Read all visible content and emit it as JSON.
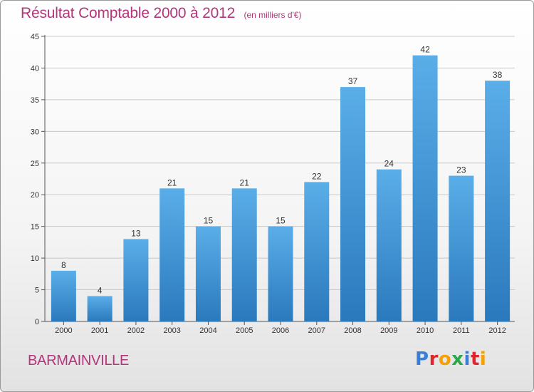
{
  "header": {
    "title": "Résultat Comptable 2000 à 2012",
    "subtitle": "(en milliers d'€)"
  },
  "footer": {
    "town": "BARMAINVILLE",
    "logo_letters": [
      "P",
      "r",
      "o",
      "x",
      "i",
      "t",
      "i"
    ],
    "logo_colors": [
      "#3a7fd5",
      "#e0252e",
      "#f5a000",
      "#2aa84a",
      "#3a7fd5",
      "#e0252e",
      "#f5a000"
    ]
  },
  "chart_data": {
    "type": "bar",
    "title": "Résultat Comptable 2000 à 2012",
    "subtitle": "(en milliers d'€)",
    "xlabel": "",
    "ylabel": "",
    "categories": [
      "2000",
      "2001",
      "2002",
      "2003",
      "2004",
      "2005",
      "2006",
      "2007",
      "2008",
      "2009",
      "2010",
      "2011",
      "2012"
    ],
    "values": [
      8,
      4,
      13,
      21,
      15,
      21,
      15,
      22,
      37,
      24,
      42,
      23,
      38
    ],
    "ylim": [
      0,
      45
    ],
    "yticks": [
      0,
      5,
      10,
      15,
      20,
      25,
      30,
      35,
      40,
      45
    ],
    "grid": true,
    "bar_color_top": "#5aaee8",
    "bar_color_bottom": "#2a79bd"
  }
}
